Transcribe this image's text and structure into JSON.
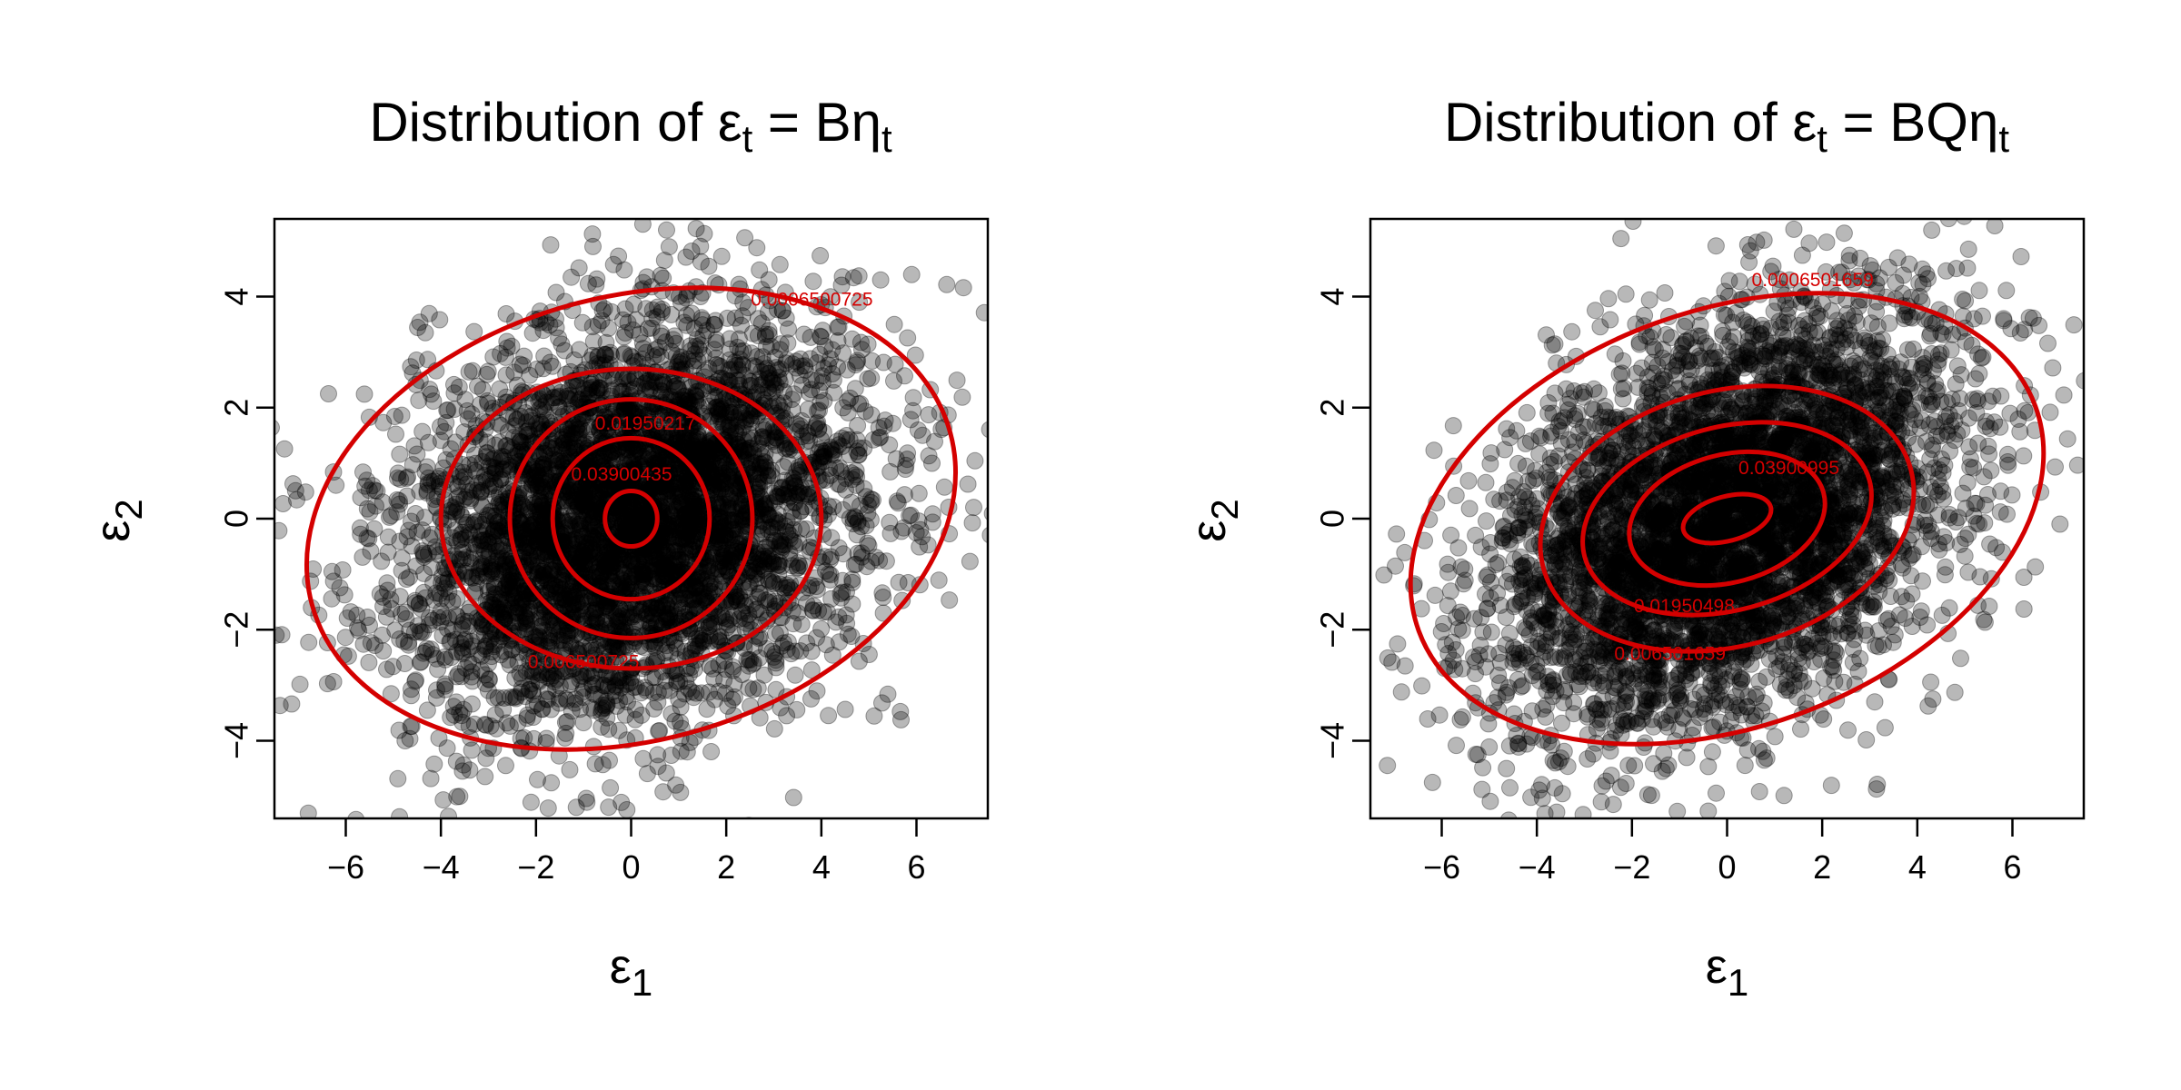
{
  "chart_data": [
    {
      "type": "scatter",
      "title_parts": {
        "prefix": "Distribution of ",
        "eps": "ε",
        "eps_sub": "t",
        "equals": " = B",
        "eta": "η",
        "eta_sub": "t"
      },
      "xlabel_parts": {
        "sym": "ε",
        "sub": "1"
      },
      "ylabel_parts": {
        "sym": "ε",
        "sub": "2"
      },
      "xlim": [
        -7.5,
        7.5
      ],
      "ylim": [
        -5.4,
        5.4
      ],
      "xticks": [
        "−6",
        "−4",
        "−2",
        "0",
        "2",
        "4",
        "6"
      ],
      "xtick_values": [
        -6,
        -4,
        -2,
        0,
        2,
        4,
        6
      ],
      "yticks": [
        "−4",
        "−2",
        "0",
        "2",
        "4"
      ],
      "ytick_values": [
        -4,
        -2,
        0,
        2,
        4
      ],
      "grid": false,
      "point_color": "#000000",
      "point_opacity": 0.28,
      "contour_color": "#d40000",
      "scatter_cov": [
        [
          6.0,
          1.1
        ],
        [
          1.1,
          3.2
        ]
      ],
      "seed": 12345,
      "n_points": 5000,
      "contours": {
        "center": [
          0,
          0
        ],
        "rx": [
          0.55,
          1.65,
          2.55,
          4.0,
          6.95
        ],
        "ry": [
          0.5,
          1.45,
          2.15,
          2.7,
          4.0
        ],
        "angle_deg": [
          0,
          0,
          0,
          0,
          15
        ]
      },
      "contour_labels": [
        {
          "text": "0.0006500725",
          "x": 3.8,
          "y": 3.95
        },
        {
          "text": "0.01950217",
          "x": 0.3,
          "y": 1.72
        },
        {
          "text": "0.03900435",
          "x": -0.2,
          "y": 0.8
        },
        {
          "text": "0.006500725",
          "x": -1.0,
          "y": -2.58
        }
      ]
    },
    {
      "type": "scatter",
      "title_parts": {
        "prefix": "Distribution of ",
        "eps": "ε",
        "eps_sub": "t",
        "equals": " = BQ",
        "eta": "η",
        "eta_sub": "t"
      },
      "xlabel_parts": {
        "sym": "ε",
        "sub": "1"
      },
      "ylabel_parts": {
        "sym": "ε",
        "sub": "2"
      },
      "xlim": [
        -7.5,
        7.5
      ],
      "ylim": [
        -5.4,
        5.4
      ],
      "xticks": [
        "−6",
        "−4",
        "−2",
        "0",
        "2",
        "4",
        "6"
      ],
      "xtick_values": [
        -6,
        -4,
        -2,
        0,
        2,
        4,
        6
      ],
      "yticks": [
        "−4",
        "−2",
        "0",
        "2",
        "4"
      ],
      "ytick_values": [
        -4,
        -2,
        0,
        2,
        4
      ],
      "grid": false,
      "point_color": "#000000",
      "point_opacity": 0.28,
      "contour_color": "#d40000",
      "scatter_cov": [
        [
          6.0,
          1.9
        ],
        [
          1.9,
          3.6
        ]
      ],
      "seed": 67890,
      "n_points": 5000,
      "contours": {
        "center": [
          0,
          0
        ],
        "rx": [
          0.95,
          2.1,
          3.1,
          4.0,
          6.9
        ],
        "ry": [
          0.4,
          1.15,
          1.65,
          2.3,
          3.75
        ],
        "angle_deg": [
          15,
          15,
          15,
          15,
          20
        ]
      },
      "contour_labels": [
        {
          "text": "0.0006501659",
          "x": 1.8,
          "y": 4.3
        },
        {
          "text": "0.03900995",
          "x": 1.3,
          "y": 0.92
        },
        {
          "text": "0.01950498",
          "x": -0.9,
          "y": -1.57
        },
        {
          "text": "0.006501659",
          "x": -1.2,
          "y": -2.43
        }
      ]
    }
  ]
}
